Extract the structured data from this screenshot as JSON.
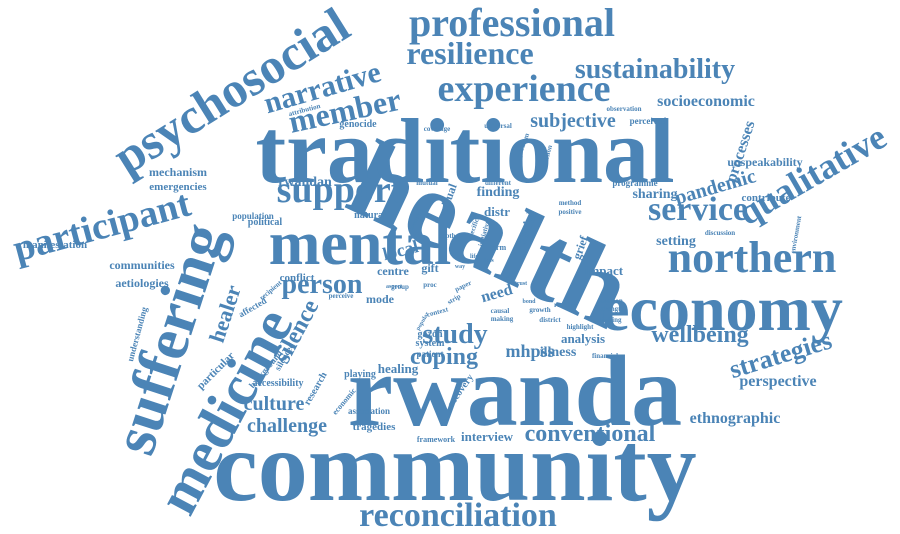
{
  "theme": {
    "word_color": "#4b84b6",
    "background": "#ffffff"
  },
  "words": [
    {
      "text": "community",
      "weight": 100
    },
    {
      "text": "health",
      "weight": 98
    },
    {
      "text": "rwanda",
      "weight": 95
    },
    {
      "text": "traditional",
      "weight": 90
    },
    {
      "text": "economy",
      "weight": 72
    },
    {
      "text": "mental",
      "weight": 68
    },
    {
      "text": "suffering",
      "weight": 60
    },
    {
      "text": "medicine",
      "weight": 55
    },
    {
      "text": "northern",
      "weight": 52
    },
    {
      "text": "psychosocial",
      "weight": 50
    },
    {
      "text": "professional",
      "weight": 48
    },
    {
      "text": "participant",
      "weight": 46
    },
    {
      "text": "experience",
      "weight": 44
    },
    {
      "text": "reconciliation",
      "weight": 42
    },
    {
      "text": "qualitative",
      "weight": 42
    },
    {
      "text": "support",
      "weight": 40
    },
    {
      "text": "service",
      "weight": 38
    },
    {
      "text": "resilience",
      "weight": 36
    },
    {
      "text": "narrative",
      "weight": 34
    },
    {
      "text": "member",
      "weight": 34
    },
    {
      "text": "sustainability",
      "weight": 32
    },
    {
      "text": "conventional",
      "weight": 30
    },
    {
      "text": "person",
      "weight": 28
    },
    {
      "text": "study",
      "weight": 28
    },
    {
      "text": "strategies",
      "weight": 28
    },
    {
      "text": "coping",
      "weight": 26
    },
    {
      "text": "silence",
      "weight": 26
    },
    {
      "text": "wellbeing",
      "weight": 24
    },
    {
      "text": "healer",
      "weight": 24
    },
    {
      "text": "challenge",
      "weight": 22
    },
    {
      "text": "culture",
      "weight": 22
    },
    {
      "text": "pandemic",
      "weight": 22
    },
    {
      "text": "subjective",
      "weight": 20
    },
    {
      "text": "local",
      "weight": 20
    },
    {
      "text": "mhpss",
      "weight": 20
    },
    {
      "text": "ethnographic",
      "weight": 18
    },
    {
      "text": "perspective",
      "weight": 18
    },
    {
      "text": "socioeconomic",
      "weight": 18
    },
    {
      "text": "processes",
      "weight": 16
    },
    {
      "text": "rwandan",
      "weight": 16
    },
    {
      "text": "finding",
      "weight": 16
    },
    {
      "text": "sharing",
      "weight": 16
    },
    {
      "text": "social",
      "weight": 16
    },
    {
      "text": "setting",
      "weight": 16
    },
    {
      "text": "need",
      "weight": 16
    },
    {
      "text": "illness",
      "weight": 16
    },
    {
      "text": "analysis",
      "weight": 14
    },
    {
      "text": "healing",
      "weight": 14
    },
    {
      "text": "impact",
      "weight": 14
    },
    {
      "text": "interview",
      "weight": 14
    },
    {
      "text": "unspeakability",
      "weight": 12
    },
    {
      "text": "communities",
      "weight": 12
    },
    {
      "text": "aetiologies",
      "weight": 12
    },
    {
      "text": "manifestation",
      "weight": 12
    },
    {
      "text": "mechanism",
      "weight": 12
    },
    {
      "text": "emergencies",
      "weight": 12
    },
    {
      "text": "ritual",
      "weight": 12
    },
    {
      "text": "distr",
      "weight": 12
    },
    {
      "text": "gift",
      "weight": 12
    },
    {
      "text": "grief",
      "weight": 12
    },
    {
      "text": "contribute",
      "weight": 12
    },
    {
      "text": "centre",
      "weight": 12
    },
    {
      "text": "conflict",
      "weight": 10
    },
    {
      "text": "mode",
      "weight": 10
    },
    {
      "text": "genocide",
      "weight": 10
    },
    {
      "text": "particular",
      "weight": 10
    },
    {
      "text": "accessibility",
      "weight": 10
    },
    {
      "text": "tragedies",
      "weight": 10
    },
    {
      "text": "association",
      "weight": 10
    },
    {
      "text": "system",
      "weight": 10
    },
    {
      "text": "playing",
      "weight": 10
    },
    {
      "text": "research",
      "weight": 10
    },
    {
      "text": "recovery",
      "weight": 10
    },
    {
      "text": "gazon",
      "weight": 10
    },
    {
      "text": "natural",
      "weight": 10
    },
    {
      "text": "political",
      "weight": 10
    },
    {
      "text": "population",
      "weight": 10
    },
    {
      "text": "affected",
      "weight": 10
    },
    {
      "text": "patient",
      "weight": 10
    },
    {
      "text": "perceived",
      "weight": 10
    },
    {
      "text": "programme",
      "weight": 10
    },
    {
      "text": "understanding",
      "weight": 8
    },
    {
      "text": "background",
      "weight": 8
    },
    {
      "text": "silenced",
      "weight": 8
    },
    {
      "text": "framework",
      "weight": 8
    },
    {
      "text": "economic",
      "weight": 8
    },
    {
      "text": "financial",
      "weight": 8
    },
    {
      "text": "common",
      "weight": 8
    },
    {
      "text": "strength",
      "weight": 8
    },
    {
      "text": "linking",
      "weight": 8
    },
    {
      "text": "highlight",
      "weight": 8
    },
    {
      "text": "require",
      "weight": 8
    },
    {
      "text": "discussion",
      "weight": 8
    },
    {
      "text": "environment",
      "weight": 8
    },
    {
      "text": "observation",
      "weight": 8
    },
    {
      "text": "universal",
      "weight": 8
    },
    {
      "text": "conclusion",
      "weight": 8
    },
    {
      "text": "problem",
      "weight": 8
    },
    {
      "text": "coverage",
      "weight": 8
    },
    {
      "text": "attribution",
      "weight": 8
    },
    {
      "text": "mutual",
      "weight": 8
    },
    {
      "text": "different",
      "weight": 8
    },
    {
      "text": "method",
      "weight": 8
    },
    {
      "text": "positive",
      "weight": 8
    },
    {
      "text": "term",
      "weight": 8
    },
    {
      "text": "initiative",
      "weight": 8
    },
    {
      "text": "specific",
      "weight": 8
    },
    {
      "text": "depth",
      "weight": 8
    },
    {
      "text": "group",
      "weight": 8
    },
    {
      "text": "paper",
      "weight": 8
    },
    {
      "text": "proc",
      "weight": 8
    },
    {
      "text": "strip",
      "weight": 8
    },
    {
      "text": "context",
      "weight": 8
    },
    {
      "text": "perceive",
      "weight": 8
    },
    {
      "text": "causal",
      "weight": 8
    },
    {
      "text": "making",
      "weight": 8
    },
    {
      "text": "district",
      "weight": 8
    },
    {
      "text": "growth",
      "weight": 8
    },
    {
      "text": "aspect",
      "weight": 8
    },
    {
      "text": "recipient",
      "weight": 8
    },
    {
      "text": "meaning",
      "weight": 8
    },
    {
      "text": "life",
      "weight": 8
    },
    {
      "text": "loss",
      "weight": 8
    },
    {
      "text": "way",
      "weight": 8
    },
    {
      "text": "trust",
      "weight": 8
    },
    {
      "text": "trend",
      "weight": 8
    },
    {
      "text": "popular",
      "weight": 8
    },
    {
      "text": "bond",
      "weight": 8
    }
  ]
}
